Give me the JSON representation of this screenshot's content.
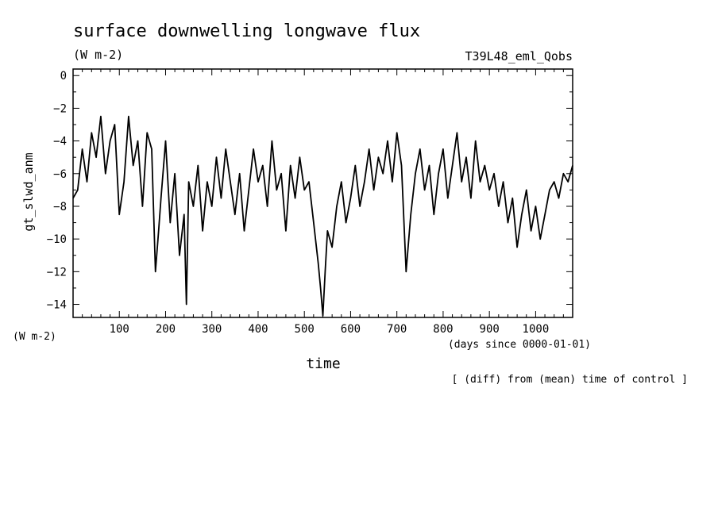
{
  "chart_data": {
    "type": "line",
    "title": "surface downwelling longwave flux",
    "subtitle_units": "(W m-2)",
    "run_name": "T39L48_eml_Qobs",
    "ylabel": "gt_slwd_anm",
    "y_units_label": "(W m-2)",
    "xlabel": "time",
    "x_units_label": "(days since 0000-01-01)",
    "note": "[ (diff) from (mean) time of control ]",
    "xlim": [
      0,
      1080
    ],
    "ylim": [
      -14.8,
      0.4
    ],
    "x_ticks_major": [
      100,
      200,
      300,
      400,
      500,
      600,
      700,
      800,
      900,
      1000
    ],
    "y_ticks_major": [
      0,
      -2,
      -4,
      -6,
      -8,
      -10,
      -12,
      -14
    ],
    "y_tick_labels": [
      "0",
      "−2",
      "−4",
      "−6",
      "−8",
      "−10",
      "−12",
      "−14"
    ],
    "grid": false,
    "line_color": "#000000",
    "series": [
      {
        "x": [
          0,
          10,
          20,
          30,
          40,
          50,
          60,
          70,
          80,
          90,
          100,
          110,
          120,
          130,
          140,
          150,
          160,
          170,
          178,
          185,
          190,
          200,
          210,
          220,
          230,
          240,
          245,
          250,
          260,
          270,
          280,
          290,
          300,
          310,
          320,
          330,
          340,
          350,
          360,
          370,
          380,
          390,
          400,
          410,
          420,
          430,
          440,
          450,
          460,
          470,
          480,
          490,
          500,
          510,
          520,
          530,
          535,
          540,
          545,
          550,
          560,
          570,
          580,
          590,
          600,
          610,
          620,
          630,
          640,
          650,
          660,
          670,
          680,
          690,
          700,
          710,
          720,
          730,
          740,
          750,
          760,
          770,
          780,
          790,
          800,
          810,
          820,
          830,
          840,
          850,
          860,
          870,
          880,
          890,
          900,
          910,
          920,
          930,
          940,
          950,
          960,
          970,
          980,
          990,
          1000,
          1010,
          1020,
          1030,
          1040,
          1050,
          1060,
          1070,
          1080
        ],
        "y": [
          -7.5,
          -7.0,
          -4.5,
          -6.5,
          -3.5,
          -5.0,
          -2.5,
          -6.0,
          -4.0,
          -3.0,
          -8.5,
          -6.5,
          -2.5,
          -5.5,
          -4.0,
          -8.0,
          -3.5,
          -4.5,
          -12.0,
          -9.5,
          -7.5,
          -4.0,
          -9.0,
          -6.0,
          -11.0,
          -8.5,
          -14.0,
          -6.5,
          -8.0,
          -5.5,
          -9.5,
          -6.5,
          -8.0,
          -5.0,
          -7.5,
          -4.5,
          -6.5,
          -8.5,
          -6.0,
          -9.5,
          -7.0,
          -4.5,
          -6.5,
          -5.5,
          -8.0,
          -4.0,
          -7.0,
          -6.0,
          -9.5,
          -5.5,
          -7.5,
          -5.0,
          -7.0,
          -6.5,
          -9.0,
          -11.5,
          -13.0,
          -14.7,
          -12.0,
          -9.5,
          -10.5,
          -8.0,
          -6.5,
          -9.0,
          -7.5,
          -5.5,
          -8.0,
          -6.5,
          -4.5,
          -7.0,
          -5.0,
          -6.0,
          -4.0,
          -6.5,
          -3.5,
          -5.5,
          -12.0,
          -8.5,
          -6.0,
          -4.5,
          -7.0,
          -5.5,
          -8.5,
          -6.0,
          -4.5,
          -7.5,
          -5.5,
          -3.5,
          -6.5,
          -5.0,
          -7.5,
          -4.0,
          -6.5,
          -5.5,
          -7.0,
          -6.0,
          -8.0,
          -6.5,
          -9.0,
          -7.5,
          -10.5,
          -8.5,
          -7.0,
          -9.5,
          -8.0,
          -10.0,
          -8.5,
          -7.0,
          -6.5,
          -7.5,
          -6.0,
          -6.5,
          -5.5
        ]
      }
    ]
  }
}
